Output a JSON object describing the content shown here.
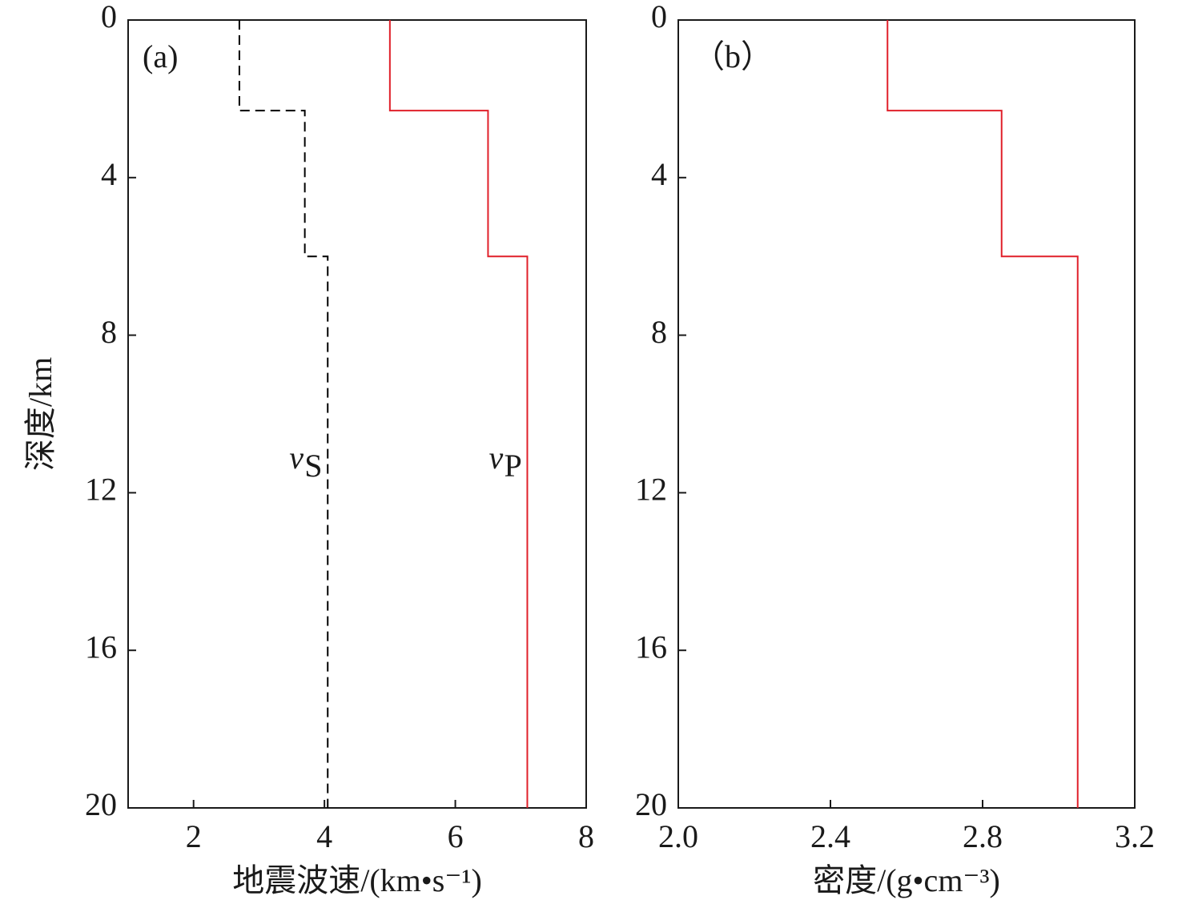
{
  "chart_data": [
    {
      "type": "step-profile",
      "panel_label": "(a)",
      "ylabel": "深度/km",
      "xlabel": "地震波速/(km•s⁻¹)",
      "xlim": [
        1,
        8
      ],
      "xticks": [
        2,
        4,
        6,
        8
      ],
      "ylim": [
        0,
        20
      ],
      "yticks": [
        0,
        4,
        8,
        12,
        16,
        20
      ],
      "y_inverted": true,
      "series": [
        {
          "label": {
            "main": "v",
            "sub": "S"
          },
          "color": "#000000",
          "dashed": true,
          "depth": [
            0,
            2.3,
            2.3,
            6,
            6,
            20
          ],
          "values": [
            2.7,
            2.7,
            3.7,
            3.7,
            4.05,
            4.05
          ]
        },
        {
          "label": {
            "main": "v",
            "sub": "P"
          },
          "color": "#e0202a",
          "dashed": false,
          "depth": [
            0,
            2.3,
            2.3,
            6,
            6,
            20
          ],
          "values": [
            5.0,
            5.0,
            6.5,
            6.5,
            7.1,
            7.1
          ]
        }
      ]
    },
    {
      "type": "step-profile",
      "panel_label": "（b）",
      "xlabel": "密度/(g•cm⁻³)",
      "xlim": [
        2.0,
        3.2
      ],
      "xticks": [
        {
          "value": 2.0,
          "label": "2.0"
        },
        2.4,
        2.8,
        {
          "value": 3.2,
          "label": "3.2"
        }
      ],
      "ylim": [
        0,
        20
      ],
      "yticks": [
        0,
        4,
        8,
        12,
        16,
        20
      ],
      "y_inverted": true,
      "series": [
        {
          "color": "#e0202a",
          "dashed": false,
          "depth": [
            0,
            2.3,
            2.3,
            6,
            6,
            20
          ],
          "values": [
            2.55,
            2.55,
            2.85,
            2.85,
            3.05,
            3.05
          ]
        }
      ]
    }
  ]
}
